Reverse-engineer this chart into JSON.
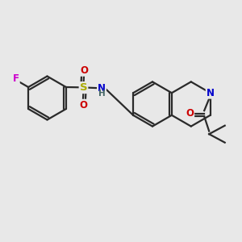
{
  "background_color": "#e8e8e8",
  "bond_color": "#2a2a2a",
  "atom_colors": {
    "F": "#cc00cc",
    "S": "#aaaa00",
    "O": "#cc0000",
    "N": "#0000cc",
    "H": "#555555",
    "C": "#2a2a2a"
  },
  "figsize": [
    3.0,
    3.0
  ],
  "dpi": 100
}
